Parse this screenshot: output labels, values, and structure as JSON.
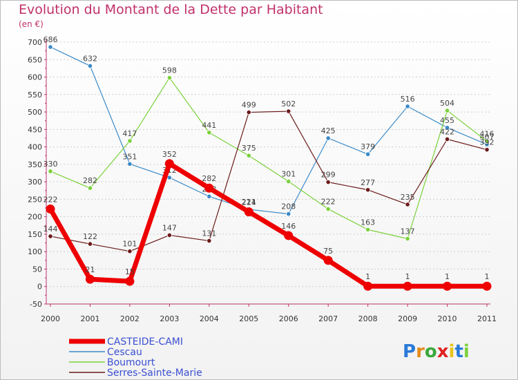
{
  "chart_data": {
    "type": "line",
    "title": "Evolution du Montant de la Dette par Habitant",
    "subtitle": "(en €)",
    "x": [
      "2000",
      "2001",
      "2002",
      "2003",
      "2004",
      "2005",
      "2006",
      "2007",
      "2008",
      "2009",
      "2010",
      "2011"
    ],
    "ylim": [
      -50,
      700
    ],
    "yticks": [
      -50,
      0,
      50,
      100,
      150,
      200,
      250,
      300,
      350,
      400,
      450,
      500,
      550,
      600,
      650,
      700
    ],
    "grid": "horizontal dashed",
    "legend_position": "bottom-left",
    "series": [
      {
        "name": "CASTEIDE-CAMI",
        "color": "#ee0000",
        "values": [
          222,
          21,
          15,
          352,
          282,
          214,
          146,
          75,
          1,
          1,
          1,
          1
        ]
      },
      {
        "name": "Cescau",
        "color": "#3a8ac8",
        "values": [
          686,
          632,
          351,
          312,
          258,
          221,
          208,
          425,
          379,
          516,
          455,
          407
        ]
      },
      {
        "name": "Boumourt",
        "color": "#7ad13a",
        "values": [
          330,
          282,
          417,
          598,
          441,
          375,
          301,
          222,
          163,
          137,
          504,
          416
        ]
      },
      {
        "name": "Serres-Sainte-Marie",
        "color": "#6b1a1a",
        "values": [
          144,
          122,
          101,
          147,
          131,
          499,
          502,
          299,
          277,
          235,
          422,
          392
        ]
      }
    ]
  },
  "brand": {
    "letters": [
      "P",
      "r",
      "o",
      "x",
      "i",
      "t",
      "i"
    ],
    "colors": [
      "#2a7ad8",
      "#e38b1a",
      "#3aa83a",
      "#e02020",
      "#e8c21a",
      "#2a7ad8",
      "#7ad13a"
    ]
  }
}
